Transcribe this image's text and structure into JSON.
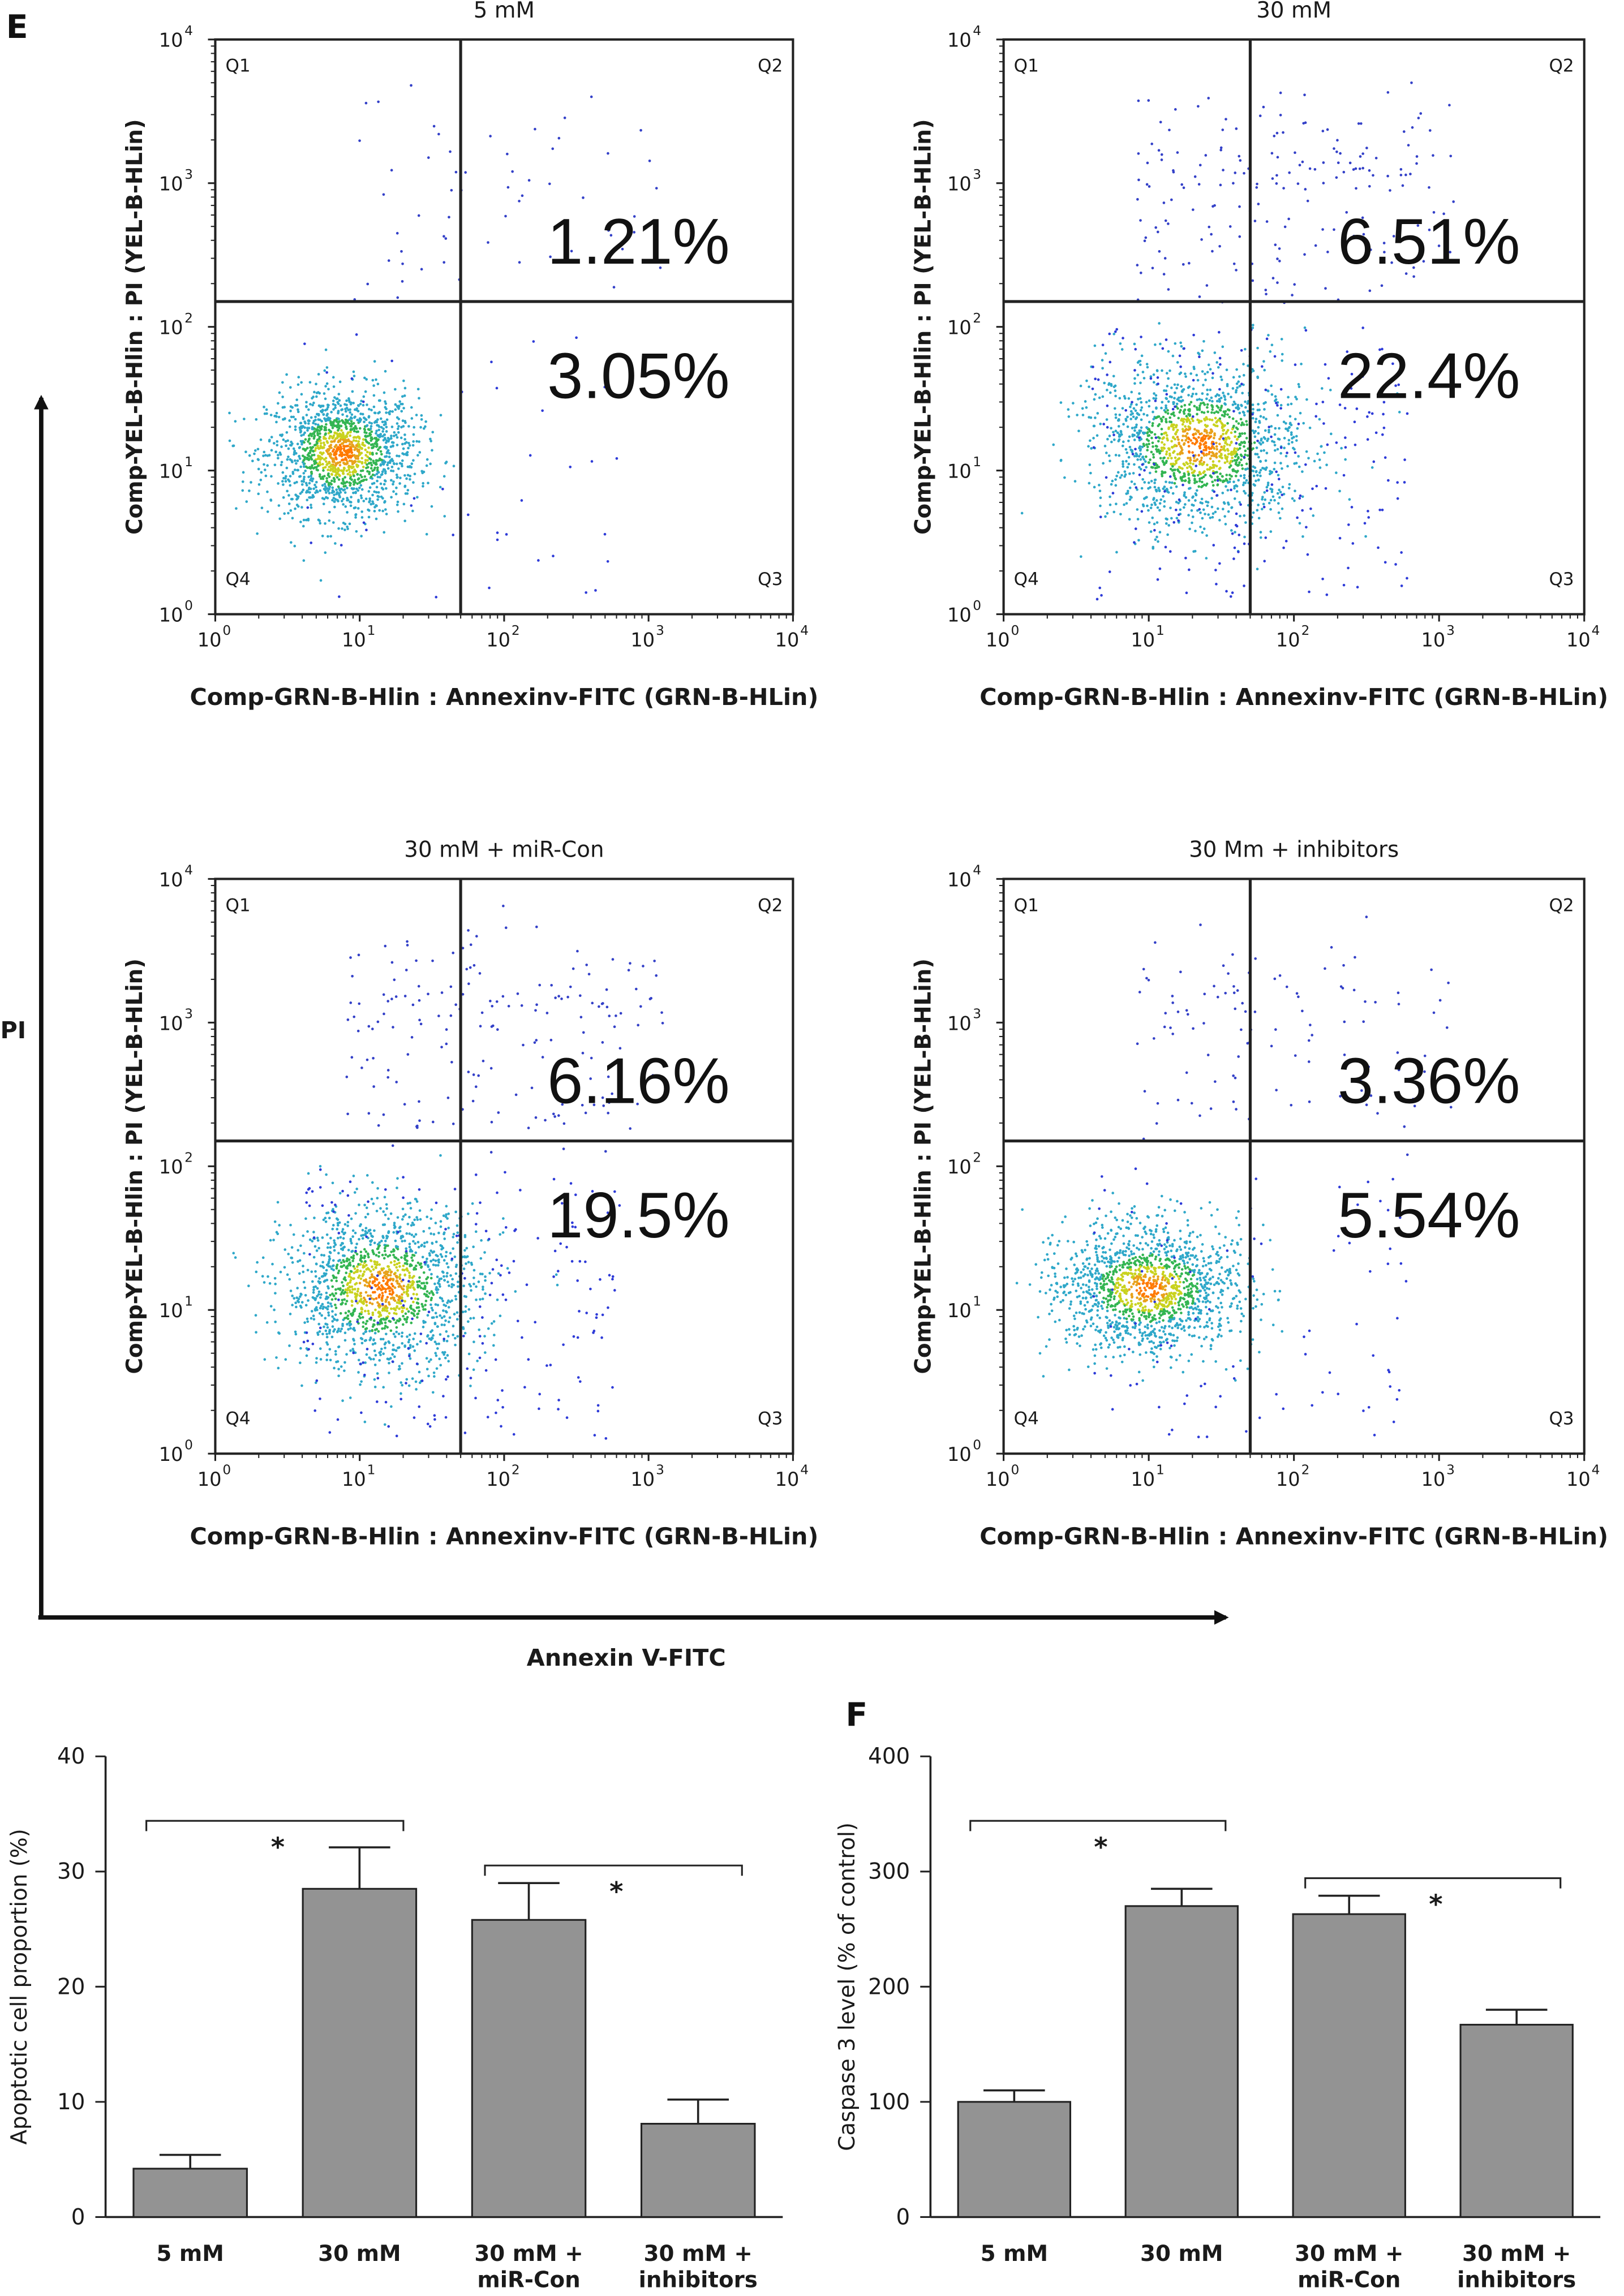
{
  "panel_labels": {
    "e": "E",
    "f": "F"
  },
  "overall_axes": {
    "y_label": "PI",
    "x_label": "Annexin V-FITC"
  },
  "flow_plots": [
    {
      "title": "5 mM",
      "x_label": "Comp-GRN-B-Hlin : Annexinv-FITC (GRN-B-HLin)",
      "y_label": "Comp-YEL-B-Hlin : PI (YEL-B-HLin)",
      "ticks": [
        "10",
        "10",
        "10",
        "10",
        "10"
      ],
      "tick_exponents": [
        "0",
        "1",
        "2",
        "3",
        "4"
      ],
      "quadrants": [
        "Q1",
        "Q2",
        "Q3",
        "Q4"
      ],
      "q2_percent": "1.21%",
      "q3_percent": "3.05%",
      "gate": {
        "x": 50,
        "y": 150
      }
    },
    {
      "title": "30 mM",
      "x_label": "Comp-GRN-B-Hlin : Annexinv-FITC (GRN-B-HLin)",
      "y_label": "Comp-YEL-B-Hlin : PI (YEL-B-HLin)",
      "ticks": [
        "10",
        "10",
        "10",
        "10",
        "10"
      ],
      "tick_exponents": [
        "0",
        "1",
        "2",
        "3",
        "4"
      ],
      "quadrants": [
        "Q1",
        "Q2",
        "Q3",
        "Q4"
      ],
      "q2_percent": "6.51%",
      "q3_percent": "22.4%",
      "gate": {
        "x": 50,
        "y": 150
      }
    },
    {
      "title": "30 mM + miR-Con",
      "x_label": "Comp-GRN-B-Hlin : Annexinv-FITC (GRN-B-HLin)",
      "y_label": "Comp-YEL-B-Hlin : PI (YEL-B-HLin)",
      "ticks": [
        "10",
        "10",
        "10",
        "10",
        "10"
      ],
      "tick_exponents": [
        "0",
        "1",
        "2",
        "3",
        "4"
      ],
      "quadrants": [
        "Q1",
        "Q2",
        "Q3",
        "Q4"
      ],
      "q2_percent": "6.16%",
      "q3_percent": "19.5%",
      "gate": {
        "x": 50,
        "y": 150
      }
    },
    {
      "title": "30 Mm + inhibitors",
      "x_label": "Comp-GRN-B-Hlin : Annexinv-FITC (GRN-B-HLin)",
      "y_label": "Comp-YEL-B-Hlin : PI (YEL-B-HLin)",
      "ticks": [
        "10",
        "10",
        "10",
        "10",
        "10"
      ],
      "tick_exponents": [
        "0",
        "1",
        "2",
        "3",
        "4"
      ],
      "quadrants": [
        "Q1",
        "Q2",
        "Q3",
        "Q4"
      ],
      "q2_percent": "3.36%",
      "q3_percent": "5.54%",
      "gate": {
        "x": 50,
        "y": 150
      }
    }
  ],
  "chart_data": [
    {
      "type": "bar",
      "title": "",
      "xlabel": "",
      "ylabel": "Apoptotic cell proportion (%)",
      "ylim": [
        0,
        40
      ],
      "yticks": [
        "0",
        "10",
        "20",
        "30",
        "40"
      ],
      "categories": [
        [
          "5 mM"
        ],
        [
          "30 mM"
        ],
        [
          "30 mM +",
          "miR-Con"
        ],
        [
          "30 mM +",
          "inhibitors"
        ]
      ],
      "values": [
        4.2,
        28.5,
        25.8,
        8.1
      ],
      "errors": [
        1.2,
        3.6,
        3.2,
        2.1
      ],
      "significance": [
        {
          "from": 0,
          "to": 1,
          "label": "*"
        },
        {
          "from": 2,
          "to": 3,
          "label": "*"
        }
      ],
      "bar_color": "#939393"
    },
    {
      "type": "bar",
      "title": "",
      "xlabel": "",
      "ylabel": "Caspase 3 level (% of control)",
      "ylim": [
        0,
        400
      ],
      "yticks": [
        "0",
        "100",
        "200",
        "300",
        "400"
      ],
      "categories": [
        [
          "5 mM"
        ],
        [
          "30 mM"
        ],
        [
          "30 mM +",
          "miR-Con"
        ],
        [
          "30 mM +",
          "inhibitors"
        ]
      ],
      "values": [
        100,
        270,
        263,
        167
      ],
      "errors": [
        10,
        15,
        16,
        13
      ],
      "significance": [
        {
          "from": 0,
          "to": 1,
          "label": "*"
        },
        {
          "from": 2,
          "to": 3,
          "label": "*"
        }
      ],
      "bar_color": "#939393"
    }
  ]
}
